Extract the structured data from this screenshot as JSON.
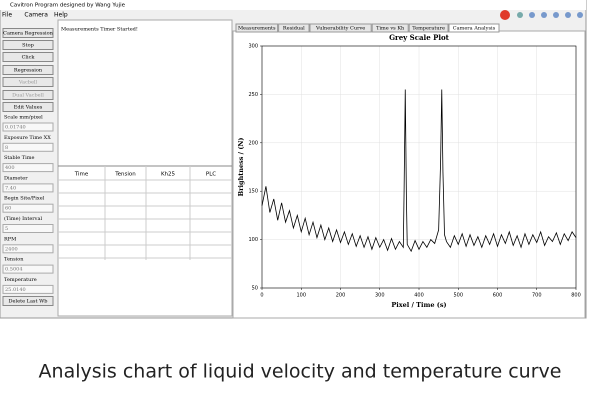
{
  "window": {
    "title": "Cavitron Program designed by Wang Yujie",
    "menu": [
      "File",
      "Camera",
      "Help"
    ]
  },
  "left_panel": {
    "buttons": [
      "Camera Regression",
      "Stop",
      "Click",
      "Regression",
      "Vacbell",
      "Dual Vacbell",
      "Edit Values"
    ],
    "fields": [
      {
        "label": "Scale mm/pixel",
        "value": "0.01740"
      },
      {
        "label": "Exposure Time XX",
        "value": "8"
      },
      {
        "label": "Stable Time",
        "value": "400"
      },
      {
        "label": "Diameter",
        "value": "7.40"
      },
      {
        "label": "Begin Site/Pixel",
        "value": "60"
      },
      {
        "label": "(Time) Interval",
        "value": "5"
      },
      {
        "label": "RPM",
        "value": "2400"
      },
      {
        "label": "Tension",
        "value": "0.5004"
      },
      {
        "label": "Temperature",
        "value": "25.0140"
      }
    ],
    "last_button": "Delete Last Wb"
  },
  "log": {
    "text": "Measurements Timer Started!"
  },
  "table": {
    "headers": [
      "Time",
      "Tension",
      "Kh25",
      "PLC"
    ]
  },
  "tabs": [
    "Measurements",
    "Residual",
    "Vulnerability Curve",
    "Time vs Kh",
    "Temperature",
    "Camera Analysis"
  ],
  "chart_data": {
    "type": "line",
    "title": "Grey Scale Plot",
    "x_label": "Pixel / Time (s)",
    "y_label": "Brightness / (N)",
    "xlim": [
      0,
      800
    ],
    "ylim": [
      50,
      300
    ],
    "xticks": [
      0,
      100,
      200,
      300,
      400,
      500,
      600,
      700,
      800
    ],
    "yticks": [
      50,
      100,
      150,
      200,
      250,
      300
    ],
    "grid": true,
    "color": "#000000",
    "x": [
      0,
      10,
      20,
      30,
      40,
      50,
      60,
      70,
      80,
      90,
      100,
      110,
      120,
      130,
      140,
      150,
      160,
      170,
      180,
      190,
      200,
      210,
      220,
      230,
      240,
      250,
      260,
      270,
      280,
      290,
      300,
      310,
      320,
      330,
      340,
      350,
      360,
      362,
      365,
      368,
      370,
      380,
      390,
      400,
      410,
      420,
      430,
      440,
      450,
      455,
      458,
      461,
      465,
      470,
      480,
      490,
      500,
      510,
      520,
      530,
      540,
      550,
      560,
      570,
      580,
      590,
      600,
      610,
      620,
      630,
      640,
      650,
      660,
      670,
      680,
      690,
      700,
      710,
      720,
      730,
      740,
      750,
      760,
      770,
      780,
      790,
      800
    ],
    "y": [
      135,
      155,
      128,
      142,
      120,
      138,
      118,
      130,
      112,
      125,
      108,
      122,
      105,
      118,
      102,
      115,
      100,
      112,
      98,
      110,
      97,
      108,
      95,
      106,
      93,
      104,
      92,
      103,
      90,
      102,
      92,
      100,
      89,
      101,
      90,
      98,
      92,
      150,
      255,
      140,
      95,
      88,
      99,
      90,
      98,
      92,
      100,
      96,
      110,
      180,
      255,
      170,
      105,
      98,
      92,
      104,
      95,
      106,
      93,
      105,
      94,
      103,
      92,
      104,
      95,
      106,
      93,
      105,
      96,
      108,
      94,
      104,
      92,
      106,
      95,
      105,
      97,
      108,
      94,
      103,
      98,
      107,
      95,
      106,
      99,
      108,
      102
    ]
  },
  "caption": "Analysis chart of liquid velocity and temperature curve"
}
